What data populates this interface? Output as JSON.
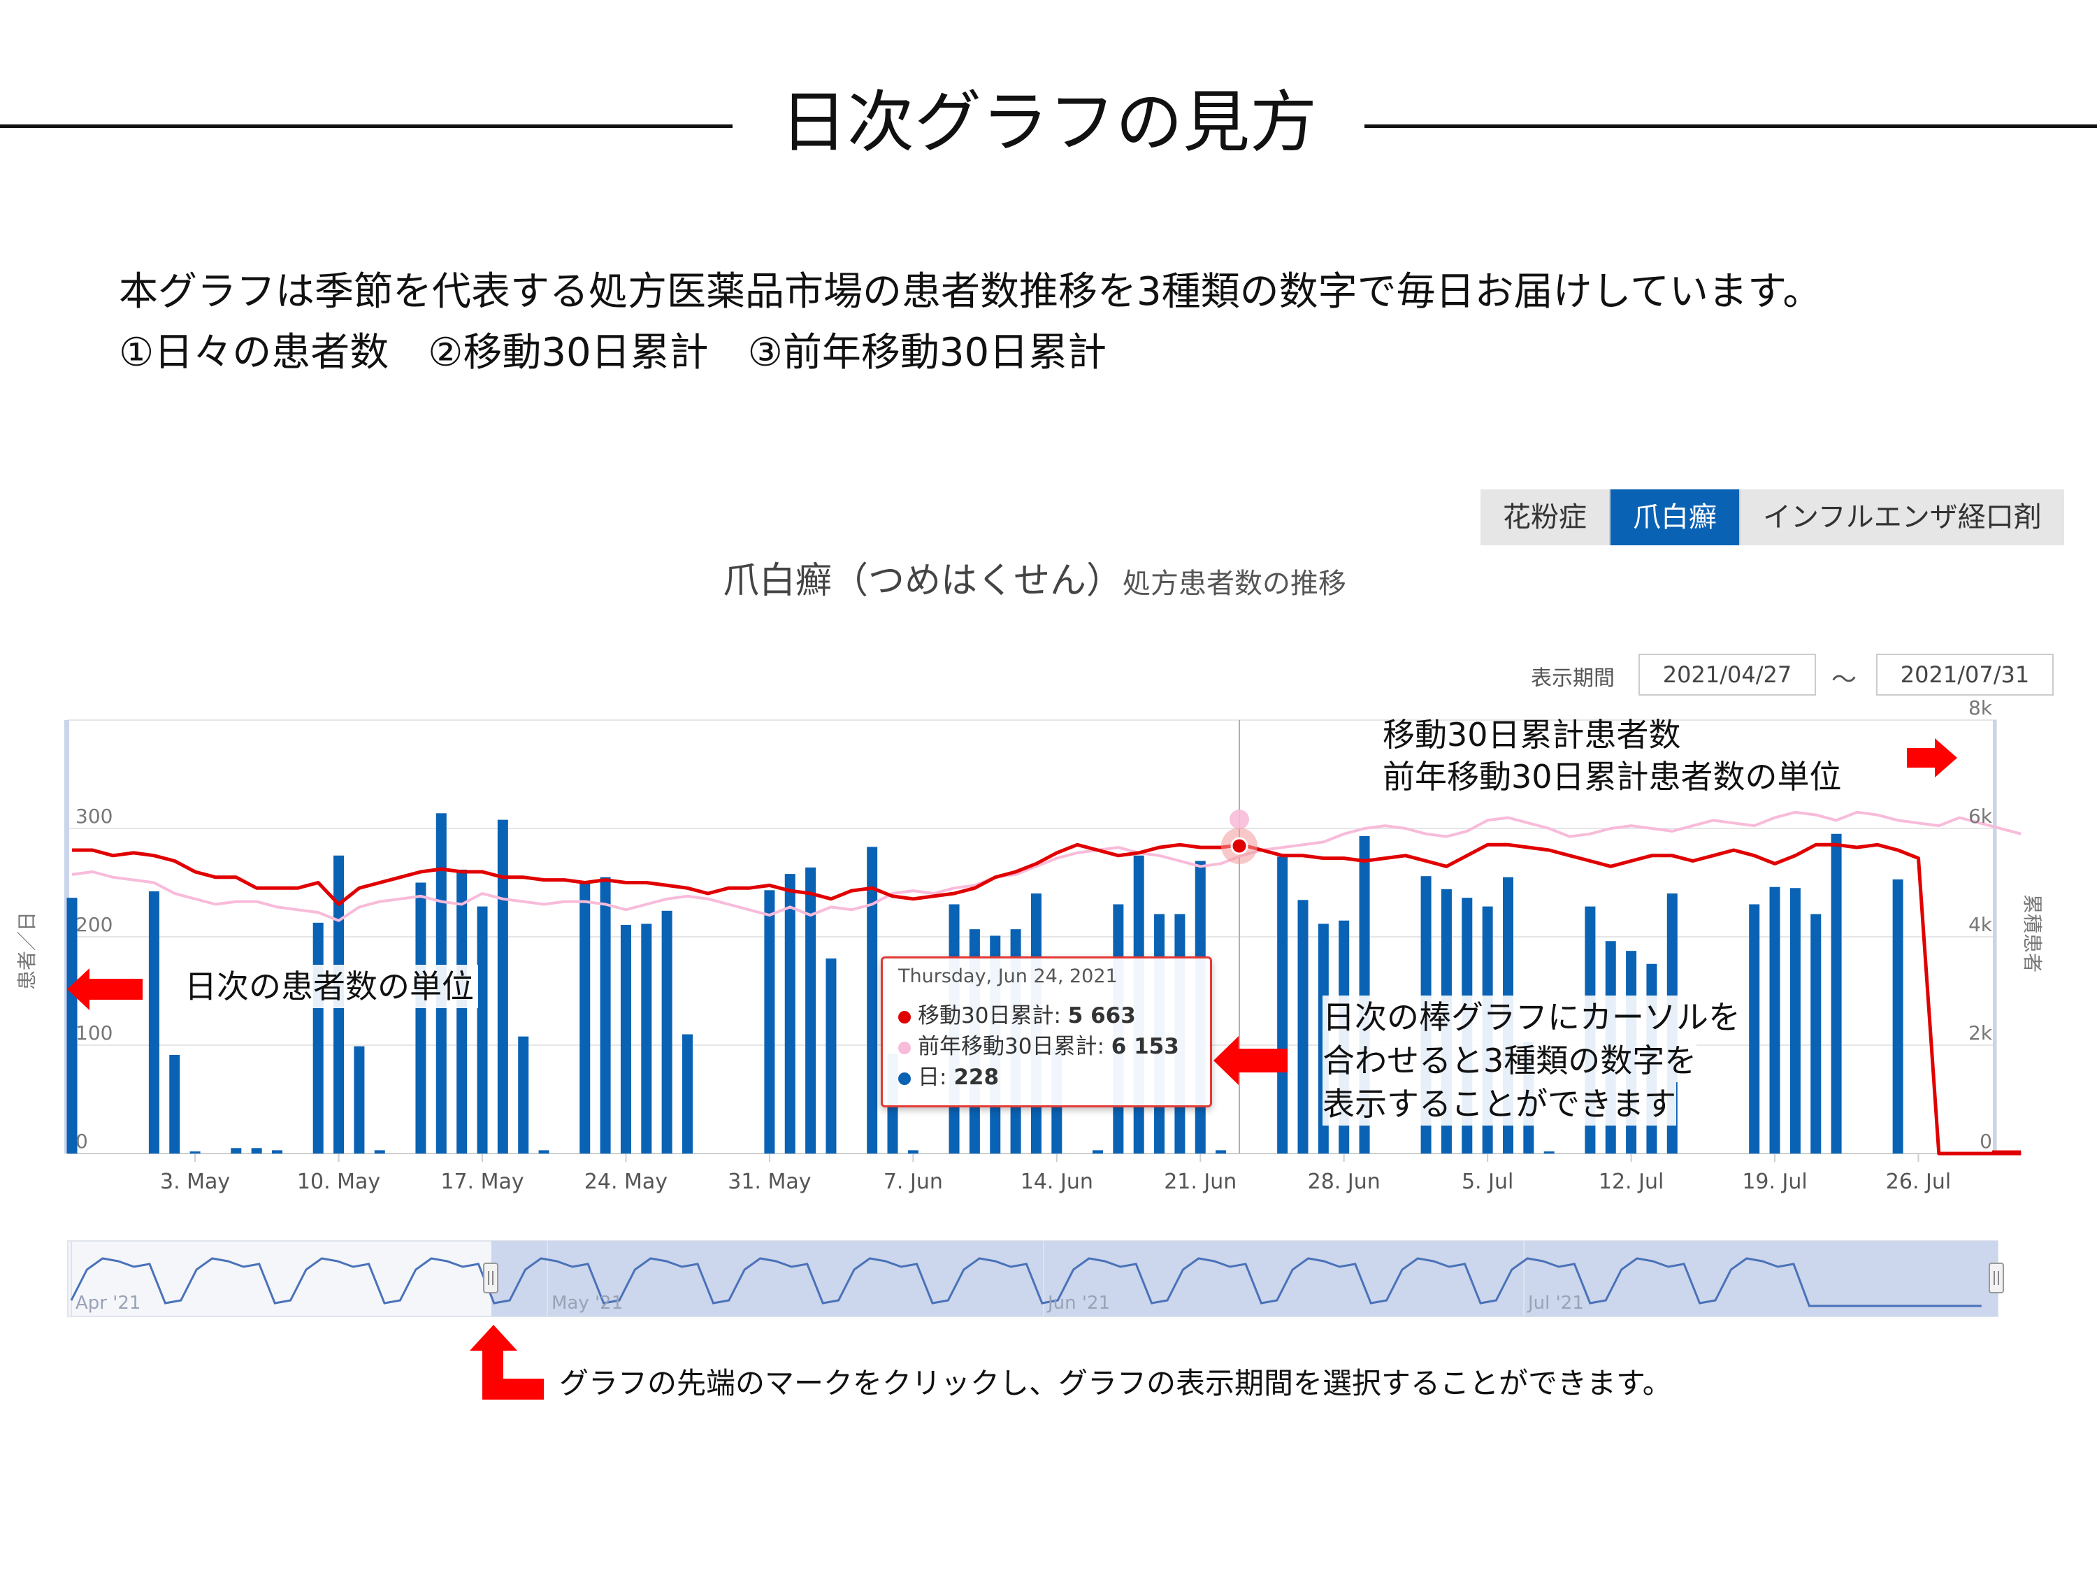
{
  "heading": "日次グラフの見方",
  "intro": {
    "line1": "本グラフは季節を代表する処方医薬品市場の患者数推移を3種類の数字で毎日お届けしています。",
    "line2": "①日々の患者数　②移動30日累計　③前年移動30日累計"
  },
  "tabs": [
    {
      "label": "花粉症",
      "active": false
    },
    {
      "label": "爪白癬",
      "active": true
    },
    {
      "label": "インフルエンザ経口剤",
      "active": false
    }
  ],
  "chart_header": {
    "title": "爪白癬（つめはくせん）",
    "subtitle": "処方患者数の推移"
  },
  "range": {
    "label": "表示期間",
    "start": "2021/04/27",
    "separator": "～",
    "end": "2021/07/31"
  },
  "annotations": {
    "right_unit_line1": "移動30日累計患者数",
    "right_unit_line2": "前年移動30日累計患者数の単位",
    "left_unit": "日次の患者数の単位",
    "hover_line1": "日次の棒グラフにカーソルを",
    "hover_line2": "合わせると3種類の数字を",
    "hover_line3": "表示することができます",
    "navigator": "グラフの先端のマークをクリックし、グラフの表示期間を選択することができます。"
  },
  "tooltip": {
    "date": "Thursday, Jun 24, 2021",
    "rows": [
      {
        "label": "移動30日累計: ",
        "value": "5 663",
        "color": "#e00000"
      },
      {
        "label": "前年移動30日累計: ",
        "value": "6 153",
        "color": "#f8bbd9"
      },
      {
        "label": "日: ",
        "value": "228",
        "color": "#0a62b4"
      }
    ]
  },
  "colors": {
    "bar": "#0a62b4",
    "moving_30d": "#e00000",
    "prev_year_30d": "#f8bbd9",
    "arrow": "#ff0000",
    "navigator_band": "#ccd6ec",
    "navigator_line": "#4a72b8"
  },
  "chart_data": {
    "type": "bar",
    "x_start": "2021-04-27",
    "x_end": "2021-07-31",
    "x_ticks": [
      "3. May",
      "10. May",
      "17. May",
      "24. May",
      "31. May",
      "7. Jun",
      "14. Jun",
      "21. Jun",
      "28. Jun",
      "5. Jul",
      "12. Jul",
      "19. Jul",
      "26. Jul"
    ],
    "y_left": {
      "label": "患者／日",
      "ticks": [
        "0",
        "100",
        "200",
        "300"
      ],
      "range": [
        0,
        400
      ]
    },
    "y_right": {
      "label": "累積患者",
      "ticks": [
        "0",
        "2k",
        "4k",
        "6k",
        "8k"
      ],
      "range": [
        0,
        8000
      ]
    },
    "grid": true,
    "series": [
      {
        "name": "日",
        "type": "bar",
        "axis": "left",
        "values": [
          236,
          0,
          0,
          0,
          242,
          91,
          2,
          0,
          5,
          5,
          3,
          0,
          213,
          275,
          99,
          3,
          0,
          250,
          314,
          262,
          228,
          308,
          108,
          3,
          0,
          251,
          255,
          211,
          212,
          224,
          110,
          0,
          0,
          0,
          243,
          258,
          264,
          180,
          0,
          283,
          92,
          3,
          0,
          230,
          207,
          201,
          207,
          240,
          98,
          0,
          3,
          230,
          275,
          221,
          221,
          270,
          3,
          0,
          0,
          274,
          234,
          212,
          215,
          293,
          0,
          0,
          256,
          244,
          236,
          228,
          255,
          103,
          2,
          0,
          228,
          196,
          187,
          175,
          240,
          0,
          0,
          0,
          230,
          246,
          245,
          221,
          295,
          0,
          0,
          253,
          0,
          0,
          0,
          0,
          0,
          0
        ]
      },
      {
        "name": "移動30日累計",
        "type": "line",
        "axis": "right",
        "values": [
          5600,
          5600,
          5500,
          5550,
          5500,
          5400,
          5200,
          5100,
          5100,
          4900,
          4900,
          4900,
          5000,
          4600,
          4900,
          5000,
          5100,
          5200,
          5250,
          5200,
          5200,
          5100,
          5100,
          5050,
          5050,
          5000,
          5050,
          5000,
          5000,
          4950,
          4900,
          4800,
          4900,
          4900,
          4950,
          4850,
          4800,
          4700,
          4850,
          4900,
          4750,
          4700,
          4750,
          4800,
          4900,
          5100,
          5200,
          5350,
          5550,
          5700,
          5600,
          5500,
          5550,
          5650,
          5700,
          5650,
          5650,
          5700,
          5600,
          5500,
          5500,
          5450,
          5450,
          5400,
          5450,
          5500,
          5400,
          5300,
          5500,
          5700,
          5700,
          5650,
          5600,
          5500,
          5400,
          5300,
          5400,
          5500,
          5500,
          5400,
          5500,
          5600,
          5500,
          5350,
          5500,
          5700,
          5700,
          5650,
          5700,
          5600,
          5450,
          0,
          0,
          0,
          0,
          0
        ]
      },
      {
        "name": "前年移動30日累計",
        "type": "line",
        "axis": "right",
        "values": [
          5150,
          5200,
          5100,
          5050,
          5000,
          4800,
          4700,
          4600,
          4650,
          4650,
          4550,
          4500,
          4450,
          4300,
          4550,
          4650,
          4700,
          4750,
          4650,
          4600,
          4800,
          4700,
          4650,
          4600,
          4650,
          4650,
          4600,
          4500,
          4600,
          4700,
          4750,
          4700,
          4600,
          4500,
          4400,
          4550,
          4400,
          4550,
          4500,
          4600,
          4800,
          4850,
          4800,
          4900,
          4950,
          5100,
          5150,
          5300,
          5450,
          5550,
          5600,
          5650,
          5550,
          5500,
          5400,
          5300,
          5350,
          5500,
          5600,
          5650,
          5700,
          5750,
          5900,
          6000,
          6050,
          6000,
          5900,
          5850,
          5950,
          6150,
          6200,
          6100,
          6000,
          5850,
          5900,
          6000,
          6050,
          6000,
          5950,
          6050,
          6150,
          6100,
          6050,
          6200,
          6300,
          6250,
          6150,
          6300,
          6250,
          6150,
          6100,
          6050,
          6200,
          6100,
          6000,
          5900
        ]
      }
    ]
  }
}
